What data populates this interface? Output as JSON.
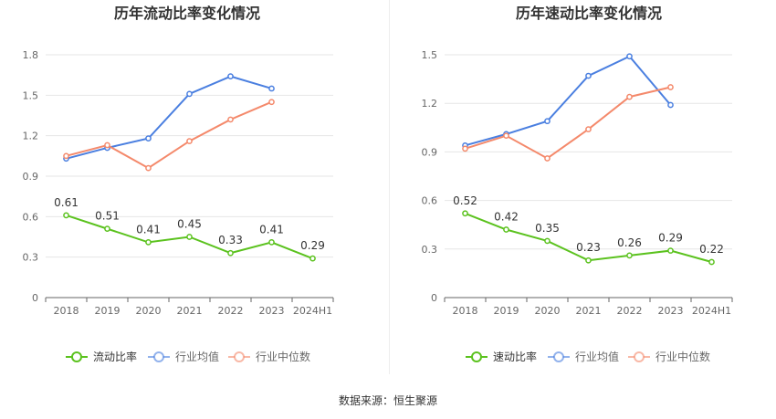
{
  "source": "数据来源：恒生聚源",
  "colors": {
    "company": "#5bc21e",
    "industry_avg": "#4a7fe0",
    "industry_median": "#f4896b",
    "grid": "#e6e6e6",
    "axis": "#666666"
  },
  "chart_data": [
    {
      "type": "line",
      "title": "历年流动比率变化情况",
      "categories": [
        "2018",
        "2019",
        "2020",
        "2021",
        "2022",
        "2023",
        "2024H1"
      ],
      "ylim": [
        0,
        1.8
      ],
      "yticks": [
        0,
        0.3,
        0.6,
        0.9,
        1.2,
        1.5,
        1.8
      ],
      "ytick_labels": [
        "0",
        "0.3",
        "0.6",
        "0.9",
        "1.2",
        "1.5",
        "1.8"
      ],
      "grid": true,
      "legend_position": "bottom",
      "series": [
        {
          "name": "流动比率",
          "color_key": "company",
          "values": [
            0.61,
            0.51,
            0.41,
            0.45,
            0.33,
            0.41,
            0.29
          ],
          "labels": [
            "0.61",
            "0.51",
            "0.41",
            "0.45",
            "0.33",
            "0.41",
            "0.29"
          ]
        },
        {
          "name": "行业均值",
          "color_key": "industry_avg",
          "values": [
            1.03,
            1.11,
            1.18,
            1.51,
            1.64,
            1.55,
            null
          ]
        },
        {
          "name": "行业中位数",
          "color_key": "industry_median",
          "values": [
            1.05,
            1.13,
            0.96,
            1.16,
            1.32,
            1.45,
            null
          ]
        }
      ]
    },
    {
      "type": "line",
      "title": "历年速动比率变化情况",
      "categories": [
        "2018",
        "2019",
        "2020",
        "2021",
        "2022",
        "2023",
        "2024H1"
      ],
      "ylim": [
        0,
        1.5
      ],
      "yticks": [
        0,
        0.3,
        0.6,
        0.9,
        1.2,
        1.5
      ],
      "ytick_labels": [
        "0",
        "0.3",
        "0.6",
        "0.9",
        "1.2",
        "1.5"
      ],
      "grid": true,
      "legend_position": "bottom",
      "series": [
        {
          "name": "速动比率",
          "color_key": "company",
          "values": [
            0.52,
            0.42,
            0.35,
            0.23,
            0.26,
            0.29,
            0.22
          ],
          "labels": [
            "0.52",
            "0.42",
            "0.35",
            "0.23",
            "0.26",
            "0.29",
            "0.22"
          ]
        },
        {
          "name": "行业均值",
          "color_key": "industry_avg",
          "values": [
            0.94,
            1.01,
            1.09,
            1.37,
            1.49,
            1.19,
            null
          ]
        },
        {
          "name": "行业中位数",
          "color_key": "industry_median",
          "values": [
            0.92,
            1.0,
            0.86,
            1.04,
            1.24,
            1.3,
            null
          ]
        }
      ]
    }
  ]
}
